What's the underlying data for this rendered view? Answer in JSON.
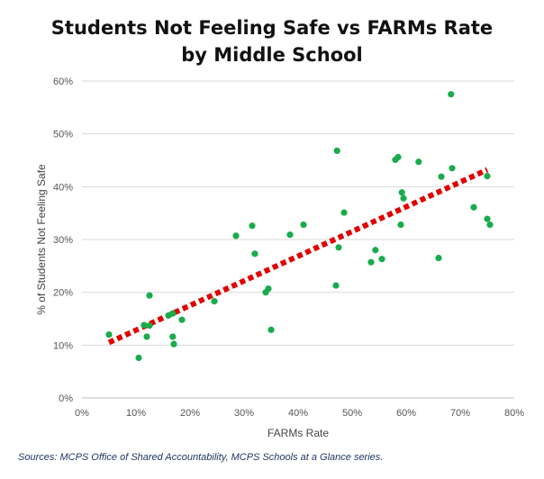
{
  "chart_data": {
    "type": "scatter",
    "title": [
      "Students Not Feeling Safe vs FARMs Rate",
      "by Middle School"
    ],
    "xlabel": "FARMs Rate",
    "ylabel": "% of Students Not Feeling Safe",
    "xlim": [
      0,
      80
    ],
    "ylim": [
      0,
      60
    ],
    "x_ticks": [
      "0%",
      "10%",
      "20%",
      "30%",
      "40%",
      "50%",
      "60%",
      "70%",
      "80%"
    ],
    "y_ticks": [
      "0%",
      "10%",
      "20%",
      "30%",
      "40%",
      "50%",
      "60%"
    ],
    "grid": true,
    "point_color": "#1aab4b",
    "trendline": {
      "style": "dotted",
      "color": "#e00000",
      "start": [
        5,
        10.5
      ],
      "end": [
        75,
        43.2
      ]
    },
    "points": [
      [
        5,
        12
      ],
      [
        10.5,
        7.6
      ],
      [
        11.5,
        13.8
      ],
      [
        12,
        11.6
      ],
      [
        12.5,
        19.4
      ],
      [
        12.5,
        13.7
      ],
      [
        16,
        15.6
      ],
      [
        16.8,
        16
      ],
      [
        16.8,
        11.6
      ],
      [
        17,
        10.2
      ],
      [
        18.5,
        14.8
      ],
      [
        24.5,
        18.3
      ],
      [
        28.5,
        30.7
      ],
      [
        31.5,
        32.6
      ],
      [
        32,
        27.3
      ],
      [
        34,
        20
      ],
      [
        34.5,
        20.7
      ],
      [
        35,
        12.9
      ],
      [
        38.5,
        30.9
      ],
      [
        41,
        32.8
      ],
      [
        47,
        21.3
      ],
      [
        47.2,
        46.8
      ],
      [
        47.5,
        28.5
      ],
      [
        48.5,
        35.1
      ],
      [
        53.5,
        25.7
      ],
      [
        54.3,
        28
      ],
      [
        55.5,
        26.3
      ],
      [
        58,
        45.1
      ],
      [
        58.5,
        45.6
      ],
      [
        59,
        32.8
      ],
      [
        59.2,
        38.9
      ],
      [
        59.5,
        37.8
      ],
      [
        62.3,
        44.7
      ],
      [
        66,
        26.5
      ],
      [
        66.5,
        41.9
      ],
      [
        68.3,
        57.5
      ],
      [
        68.5,
        43.5
      ],
      [
        72.5,
        36.1
      ],
      [
        75,
        33.9
      ],
      [
        75,
        42
      ],
      [
        75.5,
        32.8
      ]
    ]
  },
  "source": "Sources: MCPS Office of Shared Accountability, MCPS Schools at a Glance series."
}
